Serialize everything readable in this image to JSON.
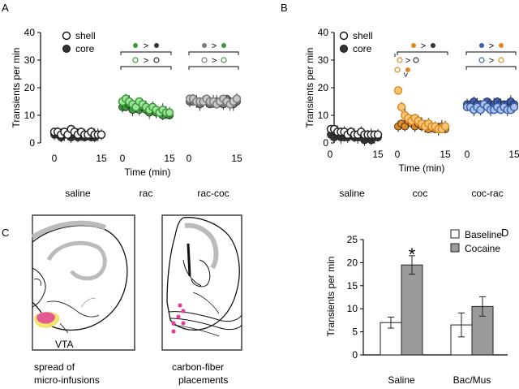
{
  "panels": {
    "A": {
      "letter": "A",
      "ylabel": "Transients per min",
      "xlabel": "Time (min)",
      "yticks": [
        "0",
        "10",
        "20",
        "30",
        "40"
      ],
      "legend": {
        "shell": "shell",
        "core": "core"
      },
      "groups": [
        {
          "label": "saline",
          "xticks": [
            "0",
            "15"
          ]
        },
        {
          "label": "rac",
          "xticks": [
            "0",
            "15"
          ]
        },
        {
          "label": "rac-coc",
          "xticks": [
            "0",
            "15"
          ]
        }
      ],
      "gt": ">"
    },
    "B": {
      "letter": "B",
      "ylabel": "Transients per min",
      "xlabel": "Time (min)",
      "yticks": [
        "0",
        "10",
        "20",
        "30",
        "40"
      ],
      "legend": {
        "shell": "shell",
        "core": "core"
      },
      "groups": [
        {
          "label": "saline",
          "xticks": [
            "0",
            "15"
          ]
        },
        {
          "label": "coc",
          "xticks": [
            "0",
            "15"
          ]
        },
        {
          "label": "coc-rac",
          "xticks": [
            "0",
            "15"
          ]
        }
      ],
      "gt": ">"
    },
    "C": {
      "letter": "C",
      "vta": "VTA",
      "caption_left": [
        "spread of",
        "micro-infusions"
      ],
      "caption_right": [
        "carbon-fiber",
        "placements"
      ]
    },
    "D": {
      "letter": "D",
      "star": "*"
    }
  },
  "colors": {
    "green_light": "#9ee39a",
    "green_dark": "#3a9a3a",
    "gray_light": "#c8c8c8",
    "gray_dark": "#7a7a7a",
    "orange_light": "#f6c77a",
    "orange_dark": "#e08a1e",
    "blue_light": "#a9c2ea",
    "blue_dark": "#3a5fb0",
    "black_dot": "#333333",
    "bar_saline": "#ffffff",
    "bar_cocaine": "#9a9a9a",
    "pink": "#e0409a",
    "yellow": "#f3e36a"
  },
  "chart_data": [
    {
      "id": "A",
      "type": "scatter",
      "title": "",
      "xlabel": "Time (min)",
      "ylabel": "Transients per min",
      "ylim": [
        0,
        40
      ],
      "xlim": [
        0,
        15
      ],
      "groups": [
        {
          "name": "saline",
          "series": [
            {
              "name": "shell",
              "values": [
                4,
                4,
                3,
                4,
                3,
                5,
                4,
                3,
                4,
                3,
                3,
                4,
                3,
                3,
                3
              ]
            },
            {
              "name": "core",
              "values": [
                3,
                3,
                2,
                3,
                3,
                2,
                3,
                2,
                3,
                2,
                3,
                2,
                2,
                3,
                3
              ]
            }
          ]
        },
        {
          "name": "rac",
          "series": [
            {
              "name": "shell",
              "values": [
                15,
                16,
                15,
                14,
                13,
                15,
                14,
                13,
                12,
                13,
                12,
                11,
                12,
                11,
                11
              ]
            },
            {
              "name": "core",
              "values": [
                13,
                13,
                14,
                12,
                13,
                12,
                13,
                12,
                11,
                12,
                11,
                11,
                10,
                11,
                10
              ]
            }
          ]
        },
        {
          "name": "rac-coc",
          "series": [
            {
              "name": "shell",
              "values": [
                16,
                16,
                15,
                15,
                15,
                16,
                15,
                15,
                14,
                15,
                16,
                15,
                14,
                15,
                16
              ]
            },
            {
              "name": "core",
              "values": [
                15,
                15,
                15,
                14,
                15,
                15,
                14,
                15,
                15,
                15,
                14,
                16,
                15,
                14,
                15
              ]
            }
          ]
        }
      ]
    },
    {
      "id": "B",
      "type": "scatter",
      "title": "",
      "xlabel": "Time (min)",
      "ylabel": "Transients per min",
      "ylim": [
        0,
        40
      ],
      "xlim": [
        0,
        15
      ],
      "groups": [
        {
          "name": "saline",
          "series": [
            {
              "name": "shell",
              "values": [
                5,
                5,
                4,
                4,
                4,
                3,
                4,
                3,
                3,
                4,
                3,
                3,
                3,
                3,
                3
              ]
            },
            {
              "name": "core",
              "values": [
                3,
                2,
                3,
                2,
                2,
                2,
                3,
                2,
                2,
                2,
                1,
                2,
                1,
                2,
                2
              ]
            }
          ]
        },
        {
          "name": "coc",
          "series": [
            {
              "name": "shell",
              "values": [
                19,
                13,
                10,
                9,
                8,
                9,
                8,
                7,
                6,
                7,
                6,
                6,
                5,
                5,
                6
              ]
            },
            {
              "name": "core",
              "values": [
                6,
                7,
                6,
                8,
                7,
                6,
                7,
                6,
                6,
                5,
                6,
                5,
                5,
                6,
                5
              ]
            }
          ]
        },
        {
          "name": "coc-rac",
          "series": [
            {
              "name": "shell",
              "values": [
                13,
                13,
                12,
                13,
                12,
                14,
                13,
                12,
                12,
                13,
                12,
                13,
                12,
                12,
                13
              ]
            },
            {
              "name": "core",
              "values": [
                14,
                14,
                15,
                14,
                14,
                14,
                15,
                14,
                14,
                15,
                14,
                14,
                14,
                15,
                14
              ]
            }
          ]
        }
      ]
    },
    {
      "id": "D",
      "type": "bar",
      "categories": [
        "Saline",
        "Bac/Mus"
      ],
      "series": [
        {
          "name": "Baseline",
          "values": [
            7,
            6.5
          ],
          "errors": [
            1.2,
            2.6
          ]
        },
        {
          "name": "Cocaine",
          "values": [
            19.5,
            10.5
          ],
          "errors": [
            2.0,
            2.1
          ]
        }
      ],
      "ylabel": "Transients per min",
      "ylim": [
        0,
        25
      ],
      "yticks": [
        "0",
        "5",
        "10",
        "15",
        "20",
        "25"
      ],
      "legend": "top-right"
    }
  ]
}
